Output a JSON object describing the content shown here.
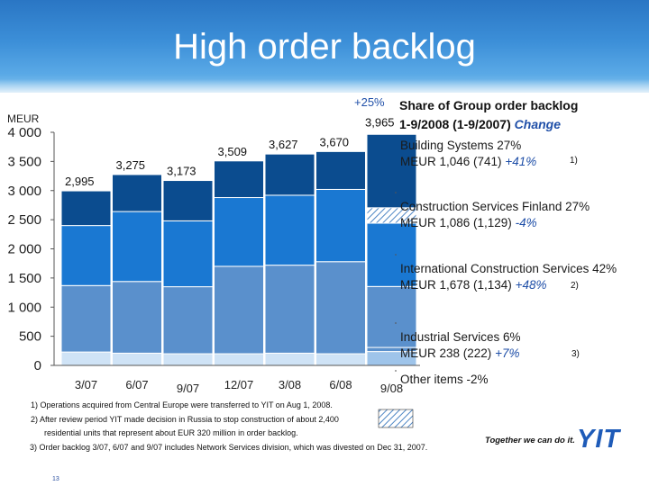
{
  "slide": {
    "title": "High order backlog",
    "page_number": "13",
    "slogan": "Together we can do it.",
    "logo_text": "YIT"
  },
  "chart_data": {
    "type": "bar",
    "stacked": true,
    "unit_label": "MEUR",
    "categories": [
      "3/07",
      "6/07",
      "9/07",
      "12/07",
      "3/08",
      "6/08",
      "9/08"
    ],
    "totals": [
      2995,
      3275,
      3173,
      3509,
      3627,
      3670,
      3965
    ],
    "total_labels": [
      "2,995",
      "3,275",
      "3,173",
      "3,509",
      "3,627",
      "3,670",
      "3,965"
    ],
    "ylim": [
      0,
      4000
    ],
    "yticks": [
      0,
      500,
      1000,
      1500,
      2000,
      2500,
      3000,
      3500,
      4000
    ],
    "ytick_labels": [
      "0",
      "500",
      "1 000",
      "1 500",
      "2 000",
      "2 500",
      "3 000",
      "3 500",
      "4 000"
    ],
    "grid": false,
    "change_label": "+25%",
    "series": [
      {
        "name": "Other items",
        "color": "#cfe3f6",
        "values": [
          230,
          210,
          200,
          200,
          210,
          200,
          0
        ]
      },
      {
        "name": "Industrial Services",
        "color": "#9ec4ea",
        "values": [
          0,
          0,
          0,
          0,
          0,
          0,
          238
        ]
      },
      {
        "name": "International Construction Services",
        "color": "#5a90cc",
        "values": [
          0,
          0,
          0,
          0,
          0,
          0,
          70
        ]
      },
      {
        "name": "Building Systems",
        "color": "#5a90cc",
        "values": [
          1140,
          1230,
          1150,
          1500,
          1510,
          1580,
          1046
        ]
      },
      {
        "name": "Construction Services Finland",
        "color": "#1a78d2",
        "values": [
          1030,
          1200,
          1130,
          1180,
          1200,
          1240,
          1086
        ]
      },
      {
        "name": "International Construction Services",
        "color": "#0b4c8f",
        "values": [
          595,
          635,
          693,
          629,
          707,
          650,
          1525
        ]
      }
    ],
    "hatched_segment": {
      "category": "9/08",
      "value": 265
    }
  },
  "legend": {
    "heading_line1": "Share of Group order backlog",
    "heading_line2": "1-9/2008 (1-9/2007)",
    "heading_change": "Change",
    "items": [
      {
        "line1": "Building Systems 27%",
        "line2": "MEUR 1,046 (741)",
        "change": "+41%",
        "note": "1)"
      },
      {
        "line1": "Construction Services Finland 27%",
        "line2": "MEUR 1,086 (1,129)",
        "change": "-4%",
        "note": ""
      },
      {
        "line1": "International Construction Services 42%",
        "line2": "MEUR 1,678 (1,134)",
        "change": "+48%",
        "note": "2)"
      },
      {
        "line1": "Industrial Services 6%",
        "line2": "MEUR 238 (222)",
        "change": "+7%",
        "note": "3)"
      },
      {
        "line1": "Other items -2%",
        "line2": "",
        "change": "",
        "note": ""
      }
    ]
  },
  "footnotes": {
    "note1": "1) Operations acquired from Central Europe were transferred to YIT on Aug 1, 2008.",
    "note2a": "2) After review period YIT made decision in Russia to stop construction of about 2,400",
    "note2b": "residential units that represent about EUR 320 million in order backlog.",
    "note3": "3) Order backlog 3/07, 6/07 and 9/07 includes Network Services division, which was divested on Dec 31, 2007."
  }
}
